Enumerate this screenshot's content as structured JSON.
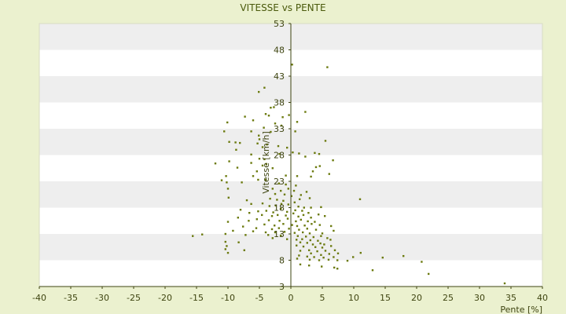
{
  "chart_data": {
    "type": "scatter",
    "title": "VITESSE vs PENTE",
    "xlabel": "Pente [%]",
    "ylabel": "Vitesse [km/h]",
    "xlim": [
      -40,
      40
    ],
    "ylim": [
      3,
      53
    ],
    "xticks": [
      -40,
      -35,
      -30,
      -25,
      -20,
      -15,
      -10,
      -5,
      0,
      5,
      10,
      15,
      20,
      25,
      30,
      35,
      40
    ],
    "yticks": [
      3,
      8,
      13,
      18,
      23,
      28,
      33,
      38,
      43,
      48,
      53
    ],
    "grid": "alternating horizontal bands",
    "colors": {
      "background": "#ebf1cf",
      "plot_band_light": "#ffffff",
      "plot_band_dark": "#eeeeee",
      "marker": "#6b7a0e",
      "axis": "#3e4410"
    },
    "points": [
      [
        0.2,
        45.2
      ],
      [
        5.8,
        44.7
      ],
      [
        -4.2,
        40.8
      ],
      [
        -5.1,
        40.0
      ],
      [
        -3.2,
        37.0
      ],
      [
        -2.7,
        37.1
      ],
      [
        2.3,
        36.2
      ],
      [
        -4.0,
        35.8
      ],
      [
        -3.5,
        35.5
      ],
      [
        -7.3,
        35.3
      ],
      [
        -6.0,
        34.6
      ],
      [
        -10.1,
        34.2
      ],
      [
        -1.3,
        35.2
      ],
      [
        -0.3,
        35.6
      ],
      [
        -2.5,
        34.0
      ],
      [
        1.0,
        34.3
      ],
      [
        -4.3,
        33.2
      ],
      [
        -1.5,
        33.6
      ],
      [
        -10.6,
        32.5
      ],
      [
        -3.2,
        32.4
      ],
      [
        -6.3,
        32.5
      ],
      [
        -5.1,
        31.7
      ],
      [
        0.7,
        32.5
      ],
      [
        -5.0,
        31.0
      ],
      [
        -9.8,
        30.5
      ],
      [
        -8.8,
        30.4
      ],
      [
        -8.1,
        30.3
      ],
      [
        -5.3,
        30.2
      ],
      [
        -3.8,
        30.0
      ],
      [
        5.5,
        30.7
      ],
      [
        -8.7,
        29.0
      ],
      [
        -4.5,
        29.5
      ],
      [
        -2.0,
        29.7
      ],
      [
        -0.6,
        29.4
      ],
      [
        0.3,
        28.5
      ],
      [
        -6.3,
        28.1
      ],
      [
        -1.8,
        28.2
      ],
      [
        1.3,
        28.3
      ],
      [
        3.8,
        28.4
      ],
      [
        4.5,
        28.2
      ],
      [
        -5.0,
        27.3
      ],
      [
        -4.2,
        27.2
      ],
      [
        2.3,
        27.7
      ],
      [
        -9.8,
        26.8
      ],
      [
        -6.3,
        26.5
      ],
      [
        -4.5,
        26.0
      ],
      [
        -3.9,
        26.3
      ],
      [
        -12.0,
        26.4
      ],
      [
        6.7,
        27.0
      ],
      [
        -8.5,
        25.6
      ],
      [
        -2.9,
        25.5
      ],
      [
        4.0,
        25.7
      ],
      [
        4.6,
        25.9
      ],
      [
        -5.4,
        24.9
      ],
      [
        3.5,
        24.9
      ],
      [
        6.1,
        24.4
      ],
      [
        -10.3,
        24.0
      ],
      [
        -6.0,
        24.0
      ],
      [
        -0.8,
        24.1
      ],
      [
        1.0,
        24.0
      ],
      [
        3.2,
        23.9
      ],
      [
        -11.0,
        23.2
      ],
      [
        -5.2,
        23.3
      ],
      [
        -4.0,
        23.3
      ],
      [
        -7.8,
        22.8
      ],
      [
        -10.2,
        22.8
      ],
      [
        -1.9,
        22.6
      ],
      [
        -0.8,
        22.4
      ],
      [
        0.8,
        22.2
      ],
      [
        -10.0,
        21.6
      ],
      [
        -2.9,
        21.6
      ],
      [
        -1.6,
        21.2
      ],
      [
        -0.4,
        21.6
      ],
      [
        0.5,
        21.2
      ],
      [
        2.5,
        21.0
      ],
      [
        -2.5,
        20.6
      ],
      [
        -1.0,
        20.5
      ],
      [
        0.1,
        20.2
      ],
      [
        1.6,
        20.4
      ],
      [
        -9.9,
        19.9
      ],
      [
        -3.3,
        19.7
      ],
      [
        -2.2,
        19.5
      ],
      [
        -1.2,
        19.3
      ],
      [
        0.6,
        19.0
      ],
      [
        1.4,
        19.6
      ],
      [
        3.0,
        19.8
      ],
      [
        -7.0,
        19.4
      ],
      [
        11.0,
        19.6
      ],
      [
        -6.3,
        18.7
      ],
      [
        -4.5,
        18.8
      ],
      [
        -3.4,
        18.3
      ],
      [
        -2.4,
        18.4
      ],
      [
        -1.5,
        18.7
      ],
      [
        -0.4,
        18.6
      ],
      [
        1.2,
        18.2
      ],
      [
        2.1,
        18.0
      ],
      [
        3.2,
        18.0
      ],
      [
        4.8,
        18.1
      ],
      [
        -8.0,
        17.6
      ],
      [
        -5.2,
        17.3
      ],
      [
        -3.9,
        17.4
      ],
      [
        -2.8,
        17.1
      ],
      [
        -1.6,
        17.8
      ],
      [
        -0.6,
        17.2
      ],
      [
        0.7,
        17.5
      ],
      [
        1.8,
        17.4
      ],
      [
        2.8,
        17.0
      ],
      [
        -6.6,
        17.0
      ],
      [
        -4.6,
        16.6
      ],
      [
        -3.0,
        16.4
      ],
      [
        -2.1,
        16.6
      ],
      [
        -0.8,
        16.5
      ],
      [
        0.4,
        16.9
      ],
      [
        1.2,
        16.3
      ],
      [
        2.0,
        16.6
      ],
      [
        3.2,
        16.1
      ],
      [
        4.4,
        16.7
      ],
      [
        5.4,
        16.4
      ],
      [
        -8.4,
        16.1
      ],
      [
        -5.4,
        15.8
      ],
      [
        -3.5,
        15.6
      ],
      [
        -1.8,
        15.5
      ],
      [
        -0.5,
        15.9
      ],
      [
        0.8,
        15.4
      ],
      [
        1.6,
        15.7
      ],
      [
        2.7,
        15.4
      ],
      [
        3.8,
        15.3
      ],
      [
        -10.0,
        15.3
      ],
      [
        -6.7,
        15.5
      ],
      [
        -4.2,
        14.8
      ],
      [
        -2.6,
        14.6
      ],
      [
        -1.2,
        14.9
      ],
      [
        0.2,
        14.7
      ],
      [
        1.0,
        14.5
      ],
      [
        2.2,
        14.6
      ],
      [
        3.3,
        14.9
      ],
      [
        4.6,
        14.7
      ],
      [
        6.4,
        14.5
      ],
      [
        -7.6,
        14.4
      ],
      [
        -5.5,
        14.1
      ],
      [
        -3.0,
        13.9
      ],
      [
        -1.9,
        14.1
      ],
      [
        -0.3,
        14.0
      ],
      [
        1.3,
        13.8
      ],
      [
        2.6,
        14.0
      ],
      [
        4.0,
        13.8
      ],
      [
        -9.2,
        13.6
      ],
      [
        -6.0,
        13.5
      ],
      [
        -4.0,
        13.3
      ],
      [
        -2.5,
        13.3
      ],
      [
        -1.0,
        13.4
      ],
      [
        0.6,
        13.2
      ],
      [
        1.9,
        13.3
      ],
      [
        3.0,
        13.1
      ],
      [
        5.0,
        13.1
      ],
      [
        6.8,
        13.6
      ],
      [
        -10.4,
        13.0
      ],
      [
        -15.6,
        12.6
      ],
      [
        -14.1,
        12.9
      ],
      [
        -7.2,
        12.8
      ],
      [
        -3.6,
        12.8
      ],
      [
        -1.6,
        12.7
      ],
      [
        1.1,
        12.6
      ],
      [
        2.4,
        12.5
      ],
      [
        3.6,
        12.4
      ],
      [
        4.8,
        12.6
      ],
      [
        5.8,
        12.2
      ],
      [
        -2.9,
        12.2
      ],
      [
        -0.6,
        12.0
      ],
      [
        0.9,
        11.9
      ],
      [
        1.8,
        12.0
      ],
      [
        3.1,
        11.8
      ],
      [
        4.3,
        11.7
      ],
      [
        6.3,
        11.9
      ],
      [
        -10.4,
        11.5
      ],
      [
        -8.3,
        11.4
      ],
      [
        1.5,
        11.4
      ],
      [
        2.6,
        11.3
      ],
      [
        3.5,
        11.0
      ],
      [
        4.7,
        11.2
      ],
      [
        5.3,
        11.0
      ],
      [
        -10.2,
        10.7
      ],
      [
        0.9,
        10.8
      ],
      [
        2.0,
        10.6
      ],
      [
        3.9,
        10.5
      ],
      [
        5.0,
        10.4
      ],
      [
        6.4,
        10.7
      ],
      [
        -10.4,
        10.1
      ],
      [
        -7.4,
        9.9
      ],
      [
        1.5,
        9.8
      ],
      [
        2.9,
        9.9
      ],
      [
        4.2,
        9.7
      ],
      [
        5.5,
        9.8
      ],
      [
        7.0,
        9.9
      ],
      [
        -10.0,
        9.4
      ],
      [
        3.2,
        9.3
      ],
      [
        4.8,
        9.0
      ],
      [
        6.1,
        9.2
      ],
      [
        7.5,
        9.3
      ],
      [
        11.1,
        9.4
      ],
      [
        1.3,
        8.9
      ],
      [
        2.6,
        8.7
      ],
      [
        3.7,
        8.6
      ],
      [
        5.2,
        8.5
      ],
      [
        6.8,
        8.6
      ],
      [
        9.9,
        8.6
      ],
      [
        14.6,
        8.5
      ],
      [
        17.9,
        8.8
      ],
      [
        1.0,
        8.3
      ],
      [
        3.0,
        8.1
      ],
      [
        4.5,
        8.0
      ],
      [
        6.0,
        8.1
      ],
      [
        7.4,
        8.0
      ],
      [
        9.0,
        7.9
      ],
      [
        20.8,
        7.7
      ],
      [
        1.5,
        7.2
      ],
      [
        2.9,
        7.0
      ],
      [
        4.9,
        6.8
      ],
      [
        6.9,
        6.6
      ],
      [
        7.4,
        6.4
      ],
      [
        13.0,
        6.1
      ],
      [
        21.9,
        5.4
      ],
      [
        34.0,
        3.6
      ]
    ]
  }
}
